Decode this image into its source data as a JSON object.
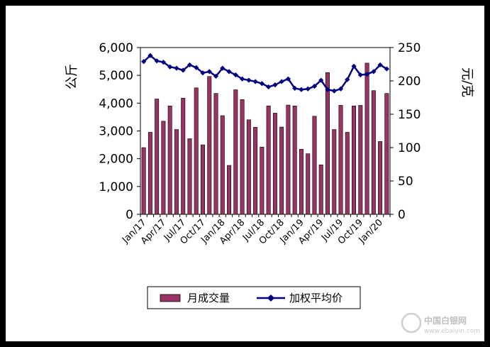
{
  "chart_data": {
    "type": "bar+line",
    "left_axis": {
      "title": "公斤",
      "ylim": [
        0,
        6000
      ],
      "ticks": [
        "0",
        "1,000",
        "2,000",
        "3,000",
        "4,000",
        "5,000",
        "6,000"
      ]
    },
    "right_axis": {
      "title": "元/克",
      "ylim": [
        0,
        250
      ],
      "ticks": [
        "0",
        "50",
        "100",
        "150",
        "200",
        "250"
      ]
    },
    "x_tick_labels": [
      "Jan/17",
      "Apr/17",
      "Jul/17",
      "Oct/17",
      "Jan/18",
      "Apr/18",
      "Jul/18",
      "Oct/18",
      "Jan/19",
      "Apr/19",
      "Jul/19",
      "Oct/19",
      "Jan/20"
    ],
    "colors": {
      "bar": "#993366",
      "line": "#000080"
    },
    "series": [
      {
        "name": "月成交量",
        "type": "bar",
        "axis": "left",
        "values": [
          2400,
          2950,
          4150,
          3350,
          3900,
          3050,
          4180,
          2720,
          4550,
          2500,
          4960,
          4350,
          3550,
          1760,
          4480,
          4130,
          3400,
          3130,
          2420,
          3900,
          3640,
          3140,
          3930,
          3900,
          2340,
          2180,
          3530,
          1780,
          5100,
          3050,
          3920,
          2950,
          3900,
          3920,
          5440,
          4450,
          2620,
          4350
        ]
      },
      {
        "name": "加权平均价",
        "type": "line",
        "axis": "right",
        "values": [
          229,
          238,
          230,
          228,
          221,
          219,
          216,
          224,
          220,
          212,
          214,
          207,
          219,
          214,
          209,
          203,
          201,
          199,
          196,
          191,
          194,
          199,
          203,
          189,
          187,
          188,
          192,
          201,
          187,
          185,
          188,
          202,
          222,
          209,
          210,
          214,
          224,
          218
        ]
      }
    ],
    "legend": {
      "placement": "bottom"
    }
  },
  "watermark": {
    "name": "中国白银网",
    "url": "www.ebaiyin.com"
  }
}
